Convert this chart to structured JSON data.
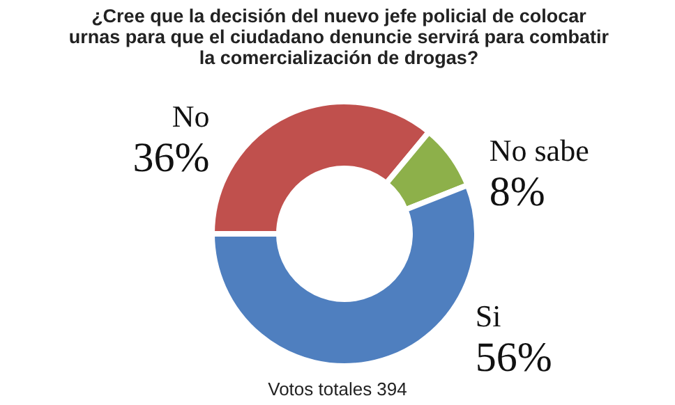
{
  "chart_data": {
    "type": "donut",
    "title": "¿Cree que la decisión del nuevo jefe policial de colocar urnas para que el ciudadano denuncie servirá para combatir la comercialización de drogas?",
    "categories": [
      "No",
      "No sabe",
      "Si"
    ],
    "values": [
      36,
      8,
      56
    ],
    "value_labels": [
      "36%",
      "8%",
      "56%"
    ],
    "colors": [
      "#c0504d",
      "#8db04a",
      "#4f7fbf"
    ],
    "annotations": [
      "Votos totales 394"
    ]
  }
}
